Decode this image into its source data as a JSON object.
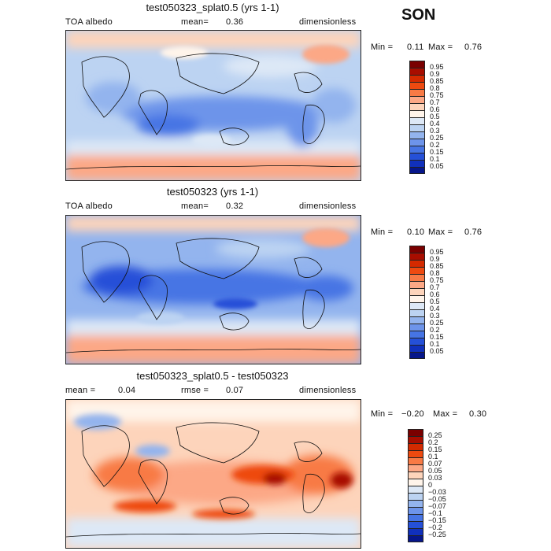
{
  "season": "SON",
  "panels": [
    {
      "title": "test050323_splat0.5 (yrs 1-1)",
      "left_label": "TOA albedo",
      "mean_label": "mean=",
      "mean_value": "0.36",
      "units": "dimensionless",
      "min_label": "Min =",
      "min_value": "0.11",
      "max_label": "Max =",
      "max_value": "0.76",
      "colorbar_levels": [
        "0.95",
        "0.9",
        "0.85",
        "0.8",
        "0.75",
        "0.7",
        "0.6",
        "0.5",
        "0.4",
        "0.3",
        "0.25",
        "0.2",
        "0.15",
        "0.1",
        "0.05"
      ],
      "colorbar_colors": [
        "#7a0000",
        "#a80d00",
        "#d42a00",
        "#ee4a10",
        "#f87a45",
        "#fca886",
        "#fdd4bb",
        "#fff4ea",
        "#dde8f6",
        "#bcd3f2",
        "#93b4ee",
        "#6d94ea",
        "#4674e4",
        "#2550d8",
        "#1030bc",
        "#06168a"
      ]
    },
    {
      "title": "test050323 (yrs 1-1)",
      "left_label": "TOA albedo",
      "mean_label": "mean=",
      "mean_value": "0.32",
      "units": "dimensionless",
      "min_label": "Min =",
      "min_value": "0.10",
      "max_label": "Max =",
      "max_value": "0.76",
      "colorbar_levels": [
        "0.95",
        "0.9",
        "0.85",
        "0.8",
        "0.75",
        "0.7",
        "0.6",
        "0.5",
        "0.4",
        "0.3",
        "0.25",
        "0.2",
        "0.15",
        "0.1",
        "0.05"
      ],
      "colorbar_colors": [
        "#7a0000",
        "#a80d00",
        "#d42a00",
        "#ee4a10",
        "#f87a45",
        "#fca886",
        "#fdd4bb",
        "#fff4ea",
        "#dde8f6",
        "#bcd3f2",
        "#93b4ee",
        "#6d94ea",
        "#4674e4",
        "#2550d8",
        "#1030bc",
        "#06168a"
      ]
    },
    {
      "title": "test050323_splat0.5 - test050323",
      "mean_label": "mean =",
      "mean_value": "0.04",
      "rmse_label": "rmse =",
      "rmse_value": "0.07",
      "units": "dimensionless",
      "min_label": "Min =",
      "min_value": "−0.20",
      "max_label": "Max =",
      "max_value": "0.30",
      "colorbar_levels": [
        "0.25",
        "0.2",
        "0.15",
        "0.1",
        "0.07",
        "0.05",
        "0.03",
        "0",
        "−0.03",
        "−0.05",
        "−0.07",
        "−0.1",
        "−0.15",
        "−0.2",
        "−0.25"
      ],
      "colorbar_colors": [
        "#7a0000",
        "#a80d00",
        "#d42a00",
        "#ee4a10",
        "#f87a45",
        "#fca886",
        "#fdd4bb",
        "#fff4ea",
        "#dde8f6",
        "#bcd3f2",
        "#93b4ee",
        "#6d94ea",
        "#4674e4",
        "#2550d8",
        "#1030bc",
        "#06168a"
      ]
    }
  ],
  "chart_data": [
    {
      "type": "heatmap",
      "title": "test050323_splat0.5 (yrs 1-1)",
      "field": "TOA albedo",
      "units": "dimensionless",
      "mean": 0.36,
      "min": 0.11,
      "max": 0.76,
      "contour_levels": [
        0.05,
        0.1,
        0.15,
        0.2,
        0.25,
        0.3,
        0.4,
        0.5,
        0.6,
        0.7,
        0.75,
        0.8,
        0.85,
        0.9,
        0.95
      ]
    },
    {
      "type": "heatmap",
      "title": "test050323 (yrs 1-1)",
      "field": "TOA albedo",
      "units": "dimensionless",
      "mean": 0.32,
      "min": 0.1,
      "max": 0.76,
      "contour_levels": [
        0.05,
        0.1,
        0.15,
        0.2,
        0.25,
        0.3,
        0.4,
        0.5,
        0.6,
        0.7,
        0.75,
        0.8,
        0.85,
        0.9,
        0.95
      ]
    },
    {
      "type": "heatmap",
      "title": "test050323_splat0.5 - test050323",
      "units": "dimensionless",
      "mean": 0.04,
      "rmse": 0.07,
      "min": -0.2,
      "max": 0.3,
      "contour_levels": [
        -0.25,
        -0.2,
        -0.15,
        -0.1,
        -0.07,
        -0.05,
        -0.03,
        0,
        0.03,
        0.05,
        0.07,
        0.1,
        0.15,
        0.2,
        0.25
      ]
    }
  ]
}
